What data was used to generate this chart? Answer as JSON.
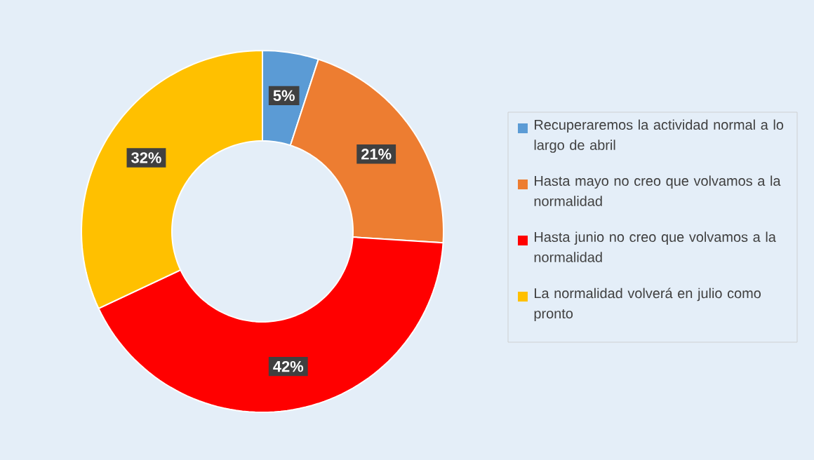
{
  "chart_data": {
    "type": "donut",
    "categories": [
      "Recuperaremos la actividad normal a lo largo de abril",
      "Hasta mayo no creo que volvamos a la normalidad",
      "Hasta junio no creo que volvamos a la normalidad",
      "La normalidad volverá en julio como pronto"
    ],
    "values": [
      5,
      21,
      42,
      32
    ],
    "colors": [
      "#5b9bd5",
      "#ed7d31",
      "#ff0000",
      "#ffc000"
    ],
    "value_labels": [
      "5%",
      "21%",
      "42%",
      "32%"
    ],
    "legend": "right"
  }
}
